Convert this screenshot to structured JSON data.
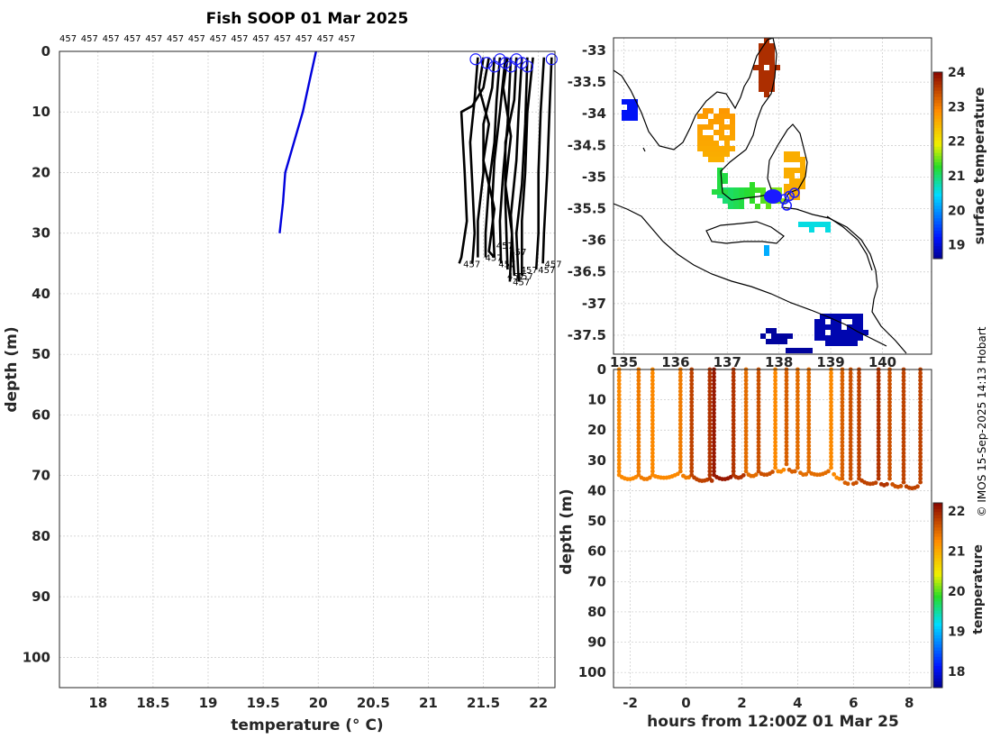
{
  "title": "Fish SOOP 01 Mar 2025",
  "credit": "© IMOS 15-Sep-2025 14:13 Hobart",
  "colors": {
    "current_profile": "#0000dd",
    "other_profiles": "#000000",
    "surface_marker": "#1a1aff"
  },
  "profile_panel": {
    "xlabel": "temperature (° C)",
    "ylabel": "depth (m)",
    "xlim": [
      17.65,
      22.15
    ],
    "ylim": [
      0,
      105
    ],
    "xticks": [
      "18",
      "18.5",
      "19",
      "19.5",
      "20",
      "20.5",
      "21",
      "21.5",
      "22"
    ],
    "yticks": [
      "0",
      "10",
      "20",
      "30",
      "40",
      "50",
      "60",
      "70",
      "80",
      "90",
      "100"
    ],
    "vessel_labels": [
      "457",
      "457",
      "457",
      "457",
      "457",
      "457",
      "457",
      "457",
      "457",
      "457",
      "457",
      "457",
      "457",
      "457"
    ],
    "end_labels": [
      "457",
      "457",
      "457",
      "457",
      "457",
      "457",
      "457",
      "457",
      "457",
      "457",
      "457"
    ],
    "grid": true
  },
  "map_panel": {
    "yticks": [
      "-33",
      "-33.5",
      "-34",
      "-34.5",
      "-35",
      "-35.5",
      "-36",
      "-36.5",
      "-37",
      "-37.5"
    ],
    "xticks": [
      "135",
      "136",
      "137",
      "138",
      "139",
      "140"
    ],
    "colorbar_label": "surface temperature",
    "colorbar_ticks": [
      "24",
      "23",
      "22",
      "21",
      "20",
      "19"
    ]
  },
  "section_panel": {
    "xlabel": "hours from 12:00Z 01 Mar 25",
    "ylabel": "depth (m)",
    "xticks": [
      "-2",
      "0",
      "2",
      "4",
      "6",
      "8"
    ],
    "yticks": [
      "0",
      "10",
      "20",
      "30",
      "40",
      "50",
      "60",
      "70",
      "80",
      "90",
      "100"
    ],
    "colorbar_label": "temperature",
    "colorbar_ticks": [
      "22",
      "21",
      "20",
      "19",
      "18"
    ]
  },
  "chart_data": [
    {
      "type": "line",
      "title": "Fish SOOP 01 Mar 2025",
      "xlabel": "temperature (° C)",
      "ylabel": "depth (m)",
      "xlim": [
        17.65,
        22.15
      ],
      "ylim": [
        0,
        105
      ],
      "y_reversed": true,
      "series": [
        {
          "role": "current",
          "points": [
            [
              19.98,
              0
            ],
            [
              19.92,
              5
            ],
            [
              19.86,
              10
            ],
            [
              19.78,
              15
            ],
            [
              19.7,
              20
            ],
            [
              19.68,
              25
            ],
            [
              19.65,
              30
            ]
          ]
        },
        {
          "points": [
            [
              21.45,
              1
            ],
            [
              21.42,
              8
            ],
            [
              21.38,
              15
            ],
            [
              21.4,
              22
            ],
            [
              21.42,
              30
            ],
            [
              21.4,
              35
            ]
          ]
        },
        {
          "points": [
            [
              21.55,
              1
            ],
            [
              21.5,
              6
            ],
            [
              21.4,
              9
            ],
            [
              21.3,
              10
            ],
            [
              21.33,
              20
            ],
            [
              21.35,
              28
            ],
            [
              21.3,
              34
            ],
            [
              21.28,
              35
            ]
          ]
        },
        {
          "points": [
            [
              21.6,
              1
            ],
            [
              21.58,
              6
            ],
            [
              21.5,
              12
            ],
            [
              21.5,
              20
            ],
            [
              21.45,
              28
            ],
            [
              21.45,
              34
            ]
          ]
        },
        {
          "points": [
            [
              21.65,
              1
            ],
            [
              21.62,
              8
            ],
            [
              21.6,
              15
            ],
            [
              21.55,
              22
            ],
            [
              21.52,
              30
            ],
            [
              21.52,
              34
            ]
          ]
        },
        {
          "points": [
            [
              21.7,
              1
            ],
            [
              21.65,
              10
            ],
            [
              21.6,
              18
            ],
            [
              21.58,
              25
            ],
            [
              21.6,
              34
            ]
          ]
        },
        {
          "points": [
            [
              21.75,
              1
            ],
            [
              21.72,
              12
            ],
            [
              21.68,
              20
            ],
            [
              21.65,
              28
            ],
            [
              21.66,
              35
            ]
          ]
        },
        {
          "points": [
            [
              21.8,
              1
            ],
            [
              21.78,
              8
            ],
            [
              21.7,
              15
            ],
            [
              21.7,
              25
            ],
            [
              21.72,
              36
            ]
          ]
        },
        {
          "points": [
            [
              21.85,
              1
            ],
            [
              21.82,
              10
            ],
            [
              21.8,
              18
            ],
            [
              21.75,
              27
            ],
            [
              21.78,
              37
            ]
          ]
        },
        {
          "points": [
            [
              21.9,
              1
            ],
            [
              21.88,
              12
            ],
            [
              21.85,
              22
            ],
            [
              21.8,
              30
            ],
            [
              21.82,
              38
            ]
          ]
        },
        {
          "points": [
            [
              21.95,
              1
            ],
            [
              21.9,
              10
            ],
            [
              21.88,
              20
            ],
            [
              21.85,
              28
            ],
            [
              21.85,
              37
            ]
          ]
        },
        {
          "points": [
            [
              22.05,
              1
            ],
            [
              22.02,
              10
            ],
            [
              22.0,
              20
            ],
            [
              22.0,
              30
            ],
            [
              21.98,
              36
            ]
          ]
        },
        {
          "points": [
            [
              22.12,
              1
            ],
            [
              22.1,
              10
            ],
            [
              22.08,
              20
            ],
            [
              22.05,
              30
            ],
            [
              22.04,
              35
            ]
          ]
        },
        {
          "points": [
            [
              21.5,
              1
            ],
            [
              21.46,
              6
            ],
            [
              21.55,
              12
            ],
            [
              21.5,
              18
            ],
            [
              21.6,
              26
            ],
            [
              21.55,
              33
            ],
            [
              21.6,
              34
            ]
          ]
        },
        {
          "points": [
            [
              21.72,
              1
            ],
            [
              21.68,
              6
            ],
            [
              21.75,
              14
            ],
            [
              21.7,
              22
            ],
            [
              21.76,
              30
            ],
            [
              21.74,
              38
            ]
          ]
        }
      ],
      "surface_markers_x": [
        21.43,
        21.53,
        21.6,
        21.65,
        21.7,
        21.75,
        21.8,
        21.85,
        21.9,
        22.12
      ],
      "end_label_points": [
        [
          21.3,
          35
        ],
        [
          21.5,
          34
        ],
        [
          21.62,
          35
        ],
        [
          21.7,
          37
        ],
        [
          21.75,
          38
        ],
        [
          21.78,
          37
        ],
        [
          21.82,
          36
        ],
        [
          21.98,
          36
        ],
        [
          22.04,
          35
        ],
        [
          21.6,
          32
        ],
        [
          21.72,
          33
        ]
      ]
    },
    {
      "type": "heatmap",
      "colorbar_label": "surface temperature",
      "xticks": [
        135,
        136,
        137,
        138,
        139,
        140
      ],
      "ylim": [
        -37.8,
        -32.8
      ],
      "colorbar_range": [
        18.6,
        24
      ],
      "ship_track_markers": [
        [
          138.1,
          -35.35
        ],
        [
          138.2,
          -35.3
        ],
        [
          138.3,
          -35.25
        ],
        [
          138.15,
          -35.45
        ]
      ]
    },
    {
      "type": "scatter",
      "xlabel": "hours from 12:00Z 01 Mar 25",
      "ylabel": "depth (m)",
      "xlim": [
        -2.6,
        8.8
      ],
      "ylim": [
        0,
        105
      ],
      "y_reversed": true,
      "colorbar_label": "temperature",
      "colorbar_range": [
        17.6,
        22.2
      ],
      "casts": [
        {
          "t": -2.4,
          "bottom": 35,
          "temp": 21.3
        },
        {
          "t": -1.7,
          "bottom": 35,
          "temp": 21.4
        },
        {
          "t": -1.2,
          "bottom": 35,
          "temp": 21.3
        },
        {
          "t": -0.2,
          "bottom": 34,
          "temp": 21.4
        },
        {
          "t": 0.2,
          "bottom": 35,
          "temp": 21.8
        },
        {
          "t": 0.85,
          "bottom": 36,
          "temp": 21.9
        },
        {
          "t": 1.0,
          "bottom": 35,
          "temp": 22.1
        },
        {
          "t": 1.7,
          "bottom": 35,
          "temp": 21.9
        },
        {
          "t": 2.15,
          "bottom": 34,
          "temp": 21.5
        },
        {
          "t": 2.6,
          "bottom": 34,
          "temp": 21.7
        },
        {
          "t": 3.2,
          "bottom": 33,
          "temp": 21.3
        },
        {
          "t": 3.6,
          "bottom": 32,
          "temp": 21.6
        },
        {
          "t": 4.0,
          "bottom": 33,
          "temp": 21.5
        },
        {
          "t": 4.4,
          "bottom": 34,
          "temp": 21.5
        },
        {
          "t": 5.2,
          "bottom": 33,
          "temp": 21.3
        },
        {
          "t": 5.6,
          "bottom": 36,
          "temp": 21.6
        },
        {
          "t": 5.9,
          "bottom": 37,
          "temp": 21.7
        },
        {
          "t": 6.2,
          "bottom": 36,
          "temp": 21.8
        },
        {
          "t": 6.9,
          "bottom": 37,
          "temp": 21.9
        },
        {
          "t": 7.3,
          "bottom": 37,
          "temp": 21.7
        },
        {
          "t": 7.8,
          "bottom": 38,
          "temp": 21.8
        },
        {
          "t": 8.4,
          "bottom": 38,
          "temp": 21.8
        }
      ]
    }
  ]
}
